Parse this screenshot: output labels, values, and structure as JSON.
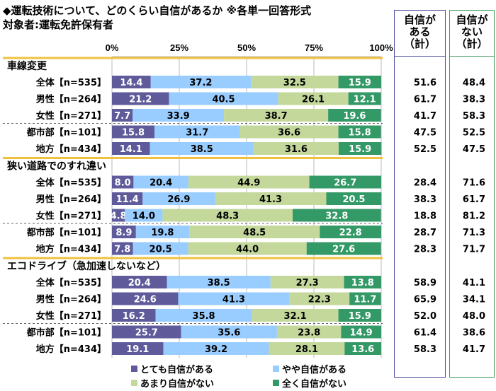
{
  "chart_data": {
    "type": "bar",
    "stacked": true,
    "orientation": "horizontal",
    "title": "◆運転技術について、どのくらい自信があるか ※各単一回答形式",
    "subtitle": "対象者:運転免許保有者",
    "xticks": [
      "0%",
      "25%",
      "50%",
      "75%",
      "100%"
    ],
    "xlim": [
      0,
      100
    ],
    "legend": [
      "とても自信がある",
      "やや自信がある",
      "あまり自信がない",
      "全く自信がない"
    ],
    "colors": [
      "#5f5b9b",
      "#99ccff",
      "#c4d89c",
      "#339966"
    ],
    "sum_headers": {
      "confident": "自信がある（計）",
      "not_confident": "自信がない（計）"
    },
    "sum_header_lines": {
      "confident": [
        "自信が",
        "ある",
        "（計）"
      ],
      "not_confident": [
        "自信が",
        "ない",
        "（計）"
      ]
    },
    "sections": [
      {
        "title": "車線変更",
        "rows": [
          {
            "label": "全体【n=535】",
            "values": [
              14.4,
              37.2,
              32.5,
              15.9
            ],
            "sum_yes": "51.6",
            "sum_no": "48.4"
          },
          {
            "label": "男性【n=264】",
            "values": [
              21.2,
              40.5,
              26.1,
              12.1
            ],
            "sum_yes": "61.7",
            "sum_no": "38.3"
          },
          {
            "label": "女性【n=271】",
            "values": [
              7.7,
              33.9,
              38.7,
              19.6
            ],
            "sum_yes": "41.7",
            "sum_no": "58.3"
          },
          {
            "label": "都市部【n=101】",
            "values": [
              15.8,
              31.7,
              36.6,
              15.8
            ],
            "sum_yes": "47.5",
            "sum_no": "52.5"
          },
          {
            "label": "地方【n=434】",
            "values": [
              14.1,
              38.5,
              31.6,
              15.9
            ],
            "sum_yes": "52.5",
            "sum_no": "47.5"
          }
        ]
      },
      {
        "title": "狭い道路でのすれ違い",
        "rows": [
          {
            "label": "全体【n=535】",
            "values": [
              8.0,
              20.4,
              44.9,
              26.7
            ],
            "sum_yes": "28.4",
            "sum_no": "71.6"
          },
          {
            "label": "男性【n=264】",
            "values": [
              11.4,
              26.9,
              41.3,
              20.5
            ],
            "sum_yes": "38.3",
            "sum_no": "61.7"
          },
          {
            "label": "女性【n=271】",
            "values": [
              4.8,
              14.0,
              48.3,
              32.8
            ],
            "sum_yes": "18.8",
            "sum_no": "81.2"
          },
          {
            "label": "都市部【n=101】",
            "values": [
              8.9,
              19.8,
              48.5,
              22.8
            ],
            "sum_yes": "28.7",
            "sum_no": "71.3"
          },
          {
            "label": "地方【n=434】",
            "values": [
              7.8,
              20.5,
              44.0,
              27.6
            ],
            "sum_yes": "28.3",
            "sum_no": "71.7"
          }
        ]
      },
      {
        "title": "エコドライブ（急加速しないなど）",
        "rows": [
          {
            "label": "全体【n=535】",
            "values": [
              20.4,
              38.5,
              27.3,
              13.8
            ],
            "sum_yes": "58.9",
            "sum_no": "41.1"
          },
          {
            "label": "男性【n=264】",
            "values": [
              24.6,
              41.3,
              22.3,
              11.7
            ],
            "sum_yes": "65.9",
            "sum_no": "34.1"
          },
          {
            "label": "女性【n=271】",
            "values": [
              16.2,
              35.8,
              32.1,
              15.9
            ],
            "sum_yes": "52.0",
            "sum_no": "48.0"
          },
          {
            "label": "都市部【n=101】",
            "values": [
              25.7,
              35.6,
              23.8,
              14.9
            ],
            "sum_yes": "61.4",
            "sum_no": "38.6"
          },
          {
            "label": "地方【n=434】",
            "values": [
              19.1,
              39.2,
              28.1,
              13.6
            ],
            "sum_yes": "58.3",
            "sum_no": "41.7"
          }
        ]
      }
    ]
  }
}
